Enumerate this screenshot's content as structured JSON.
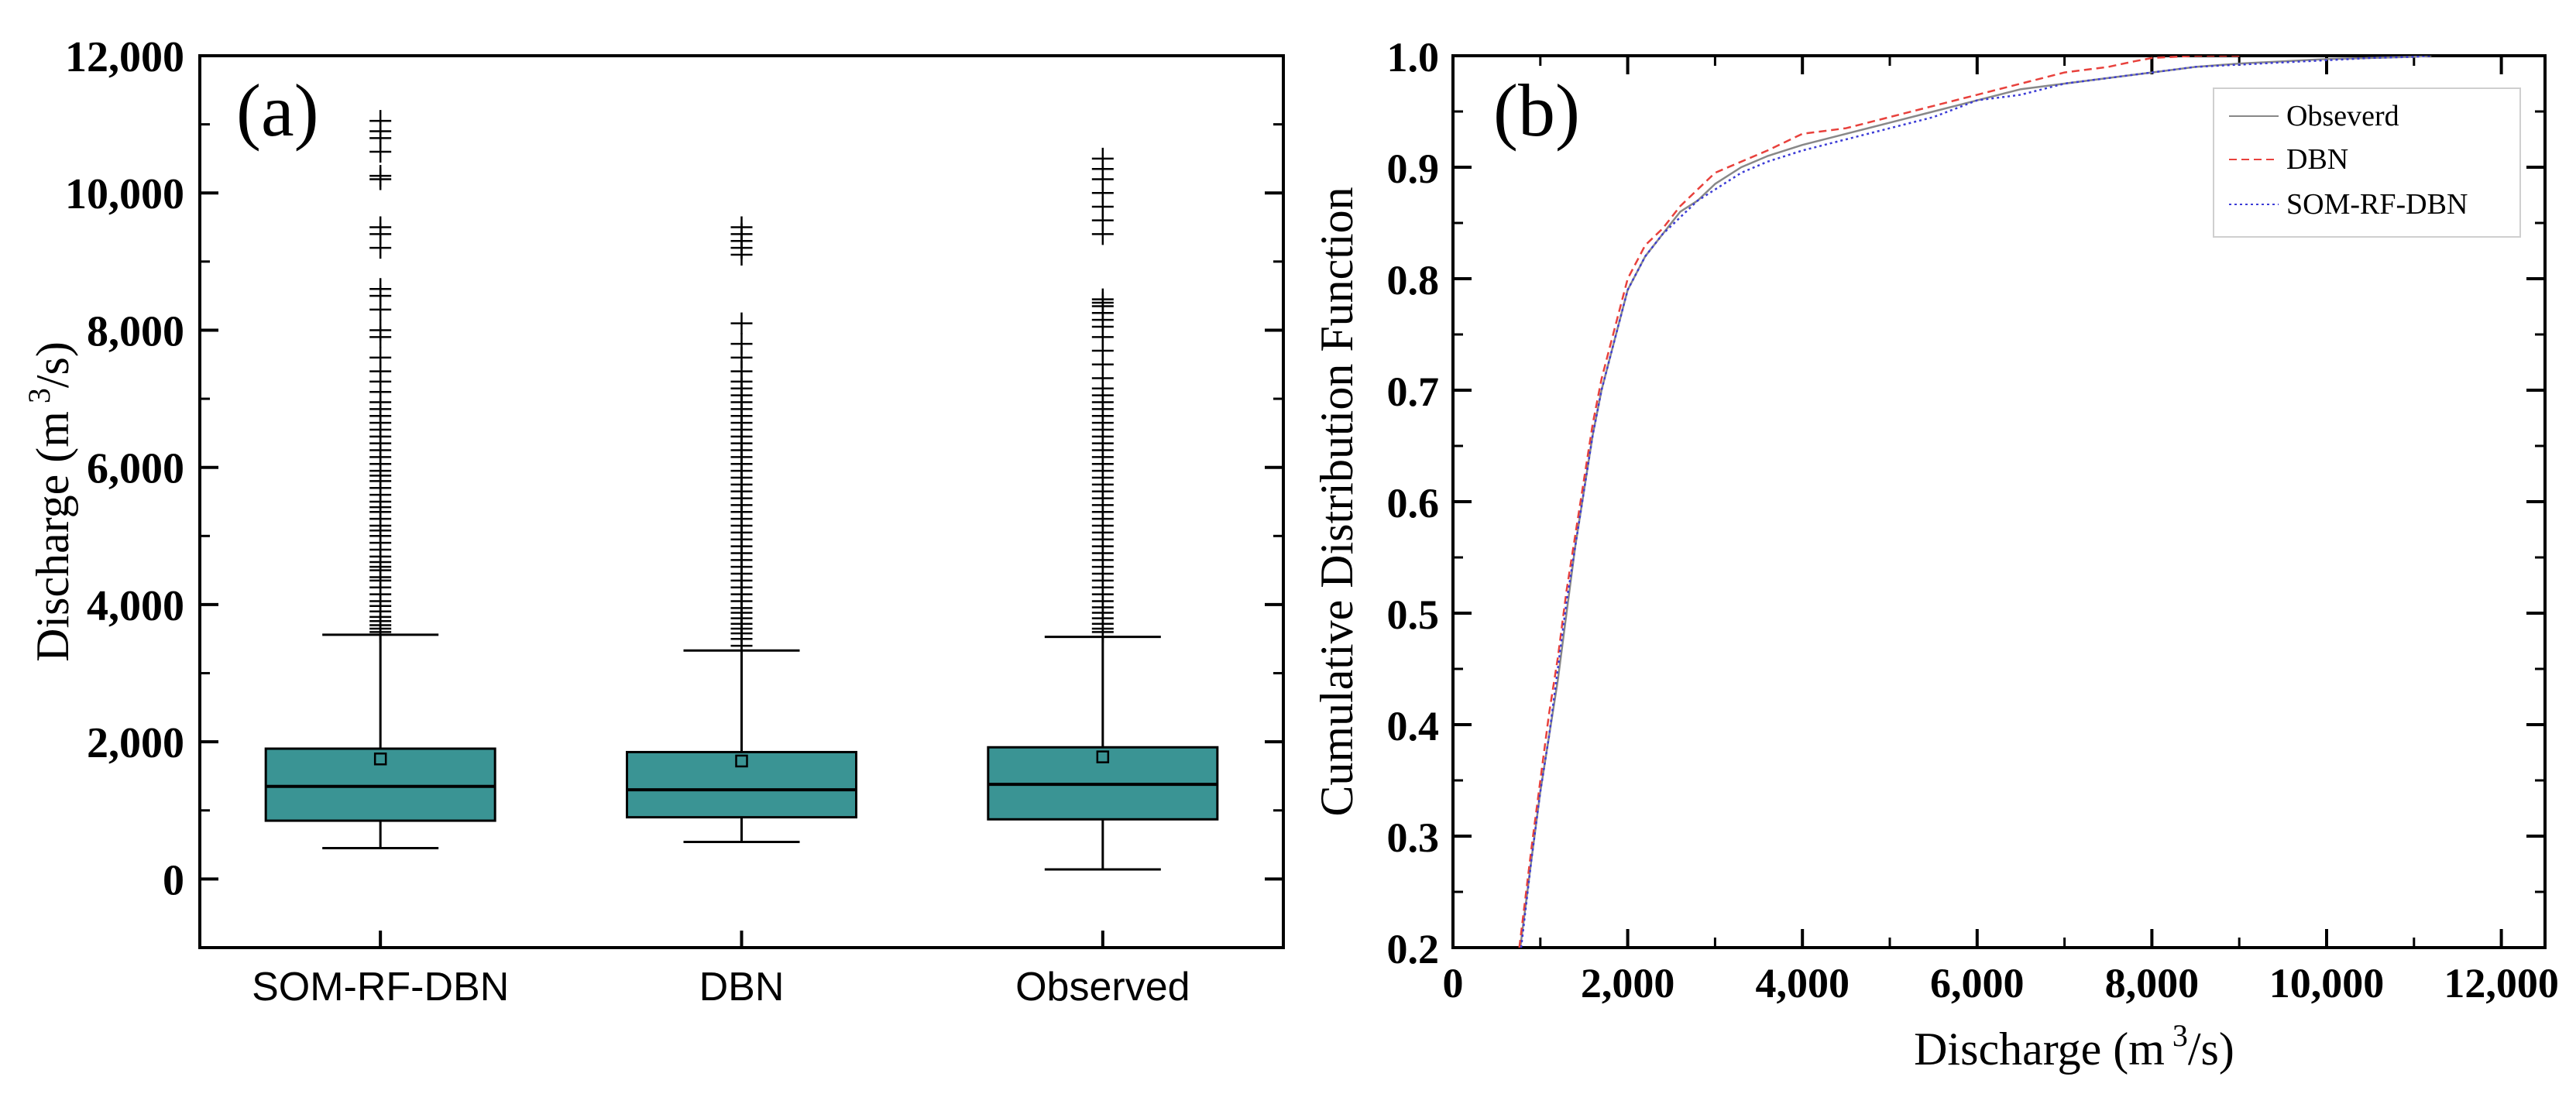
{
  "chart_data": [
    {
      "type": "box",
      "panel_label": "(a)",
      "ylabel": "Discharge (m",
      "ylabel_sup": "3",
      "ylabel_end": "/s)",
      "ylim": [
        -1000,
        12000
      ],
      "yticks": [
        0,
        2000,
        4000,
        6000,
        8000,
        10000,
        12000
      ],
      "ytick_labels": [
        "0",
        "2,000",
        "4,000",
        "6,000",
        "8,000",
        "10,000",
        "12,000"
      ],
      "categories": [
        "SOM-RF-DBN",
        "DBN",
        "Observed"
      ],
      "box_color": "#3a9494",
      "boxes": [
        {
          "name": "SOM-RF-DBN",
          "whisker_low": 450,
          "q1": 850,
          "median": 1350,
          "q3": 1900,
          "whisker_high": 3560,
          "mean": 1750,
          "outliers": [
            3600,
            3650,
            3700,
            3760,
            3820,
            3900,
            3980,
            4050,
            4150,
            4250,
            4350,
            4400,
            4500,
            4550,
            4620,
            4700,
            4800,
            4900,
            5000,
            5080,
            5150,
            5250,
            5350,
            5420,
            5500,
            5600,
            5700,
            5800,
            5880,
            5950,
            6050,
            6150,
            6250,
            6350,
            6450,
            6550,
            6650,
            6750,
            6850,
            6950,
            7100,
            7250,
            7400,
            7600,
            7900,
            8000,
            8300,
            8500,
            8600,
            9200,
            9400,
            9500,
            10200,
            10250,
            10600,
            10800,
            10900,
            11050
          ]
        },
        {
          "name": "DBN",
          "whisker_low": 540,
          "q1": 900,
          "median": 1300,
          "q3": 1850,
          "whisker_high": 3330,
          "mean": 1720,
          "outliers": [
            3400,
            3500,
            3580,
            3650,
            3720,
            3800,
            3880,
            3950,
            4050,
            4150,
            4250,
            4350,
            4450,
            4550,
            4650,
            4750,
            4850,
            4950,
            5050,
            5150,
            5250,
            5350,
            5450,
            5550,
            5650,
            5750,
            5850,
            5950,
            6050,
            6150,
            6250,
            6350,
            6450,
            6550,
            6650,
            6750,
            6850,
            6950,
            7050,
            7150,
            7250,
            7400,
            7600,
            7800,
            8100,
            9100,
            9200,
            9300,
            9400,
            9500
          ]
        },
        {
          "name": "Observed",
          "whisker_low": 140,
          "q1": 870,
          "median": 1380,
          "q3": 1920,
          "whisker_high": 3530,
          "mean": 1780,
          "outliers": [
            3600,
            3650,
            3720,
            3800,
            3880,
            3960,
            4050,
            4150,
            4250,
            4350,
            4450,
            4550,
            4650,
            4750,
            4850,
            4950,
            5050,
            5150,
            5250,
            5350,
            5450,
            5550,
            5650,
            5750,
            5850,
            5950,
            6050,
            6150,
            6250,
            6350,
            6450,
            6550,
            6650,
            6750,
            6850,
            6950,
            7050,
            7150,
            7300,
            7500,
            7700,
            7900,
            8050,
            8150,
            8250,
            8350,
            8400,
            8450,
            9400,
            9600,
            9800,
            10000,
            10200,
            10350,
            10500
          ]
        }
      ]
    },
    {
      "type": "line",
      "panel_label": "(b)",
      "xlabel": "Discharge (m",
      "xlabel_sup": "3",
      "xlabel_end": "/s)",
      "ylabel": "Cumulative Distribution Function",
      "xlim": [
        0,
        12500
      ],
      "ylim": [
        0.2,
        1.0
      ],
      "xticks": [
        0,
        2000,
        4000,
        6000,
        8000,
        10000,
        12000
      ],
      "xtick_labels": [
        "0",
        "2,000",
        "4,000",
        "6,000",
        "8,000",
        "10,000",
        "12,000"
      ],
      "yticks": [
        0.2,
        0.3,
        0.4,
        0.5,
        0.6,
        0.7,
        0.8,
        0.9,
        1.0
      ],
      "ytick_labels": [
        "0.2",
        "0.3",
        "0.4",
        "0.5",
        "0.6",
        "0.7",
        "0.8",
        "0.9",
        "1.0"
      ],
      "legend_position": "top-right",
      "series": [
        {
          "name": "Obseverd",
          "color": "#888888",
          "dash": "solid",
          "x": [
            770,
            900,
            1000,
            1100,
            1200,
            1300,
            1400,
            1500,
            1600,
            1700,
            1800,
            1900,
            2000,
            2200,
            2400,
            2600,
            2800,
            3000,
            3300,
            3600,
            4000,
            4500,
            5000,
            5500,
            6000,
            6500,
            7000,
            7500,
            8000,
            8500,
            9000,
            9500,
            10000,
            10500,
            11000,
            11200
          ],
          "y": [
            0.2,
            0.28,
            0.34,
            0.39,
            0.44,
            0.5,
            0.56,
            0.61,
            0.66,
            0.7,
            0.73,
            0.76,
            0.79,
            0.82,
            0.84,
            0.86,
            0.87,
            0.885,
            0.9,
            0.91,
            0.92,
            0.93,
            0.94,
            0.95,
            0.96,
            0.97,
            0.975,
            0.98,
            0.985,
            0.99,
            0.993,
            0.995,
            0.997,
            0.998,
            0.999,
            1.0
          ]
        },
        {
          "name": "DBN",
          "color": "#e8413c",
          "dash": "dashed",
          "x": [
            760,
            900,
            1000,
            1100,
            1200,
            1300,
            1400,
            1500,
            1600,
            1700,
            1800,
            1900,
            2000,
            2200,
            2400,
            2600,
            2800,
            3000,
            3300,
            3600,
            4000,
            4500,
            5000,
            5500,
            6000,
            6500,
            7000,
            7500,
            7800,
            8000,
            8500,
            9000
          ],
          "y": [
            0.2,
            0.29,
            0.35,
            0.41,
            0.46,
            0.52,
            0.57,
            0.62,
            0.67,
            0.71,
            0.74,
            0.77,
            0.8,
            0.83,
            0.845,
            0.865,
            0.88,
            0.895,
            0.905,
            0.915,
            0.93,
            0.935,
            0.945,
            0.955,
            0.965,
            0.975,
            0.985,
            0.99,
            0.995,
            0.998,
            1.0,
            1.0
          ]
        },
        {
          "name": "SOM-RF-DBN",
          "color": "#3b3bd6",
          "dash": "dotted",
          "x": [
            780,
            900,
            1000,
            1100,
            1200,
            1300,
            1400,
            1500,
            1600,
            1700,
            1800,
            1900,
            2000,
            2200,
            2400,
            2600,
            2800,
            3000,
            3300,
            3600,
            4000,
            4500,
            5000,
            5500,
            6000,
            6500,
            7000,
            7500,
            8000,
            8500,
            9000,
            9500,
            10000,
            10500,
            11000,
            11200
          ],
          "y": [
            0.2,
            0.28,
            0.34,
            0.39,
            0.45,
            0.51,
            0.56,
            0.61,
            0.66,
            0.7,
            0.73,
            0.76,
            0.79,
            0.82,
            0.84,
            0.855,
            0.87,
            0.88,
            0.895,
            0.905,
            0.915,
            0.925,
            0.935,
            0.945,
            0.96,
            0.965,
            0.975,
            0.98,
            0.985,
            0.99,
            0.992,
            0.994,
            0.996,
            0.998,
            0.999,
            1.0
          ]
        }
      ]
    }
  ]
}
